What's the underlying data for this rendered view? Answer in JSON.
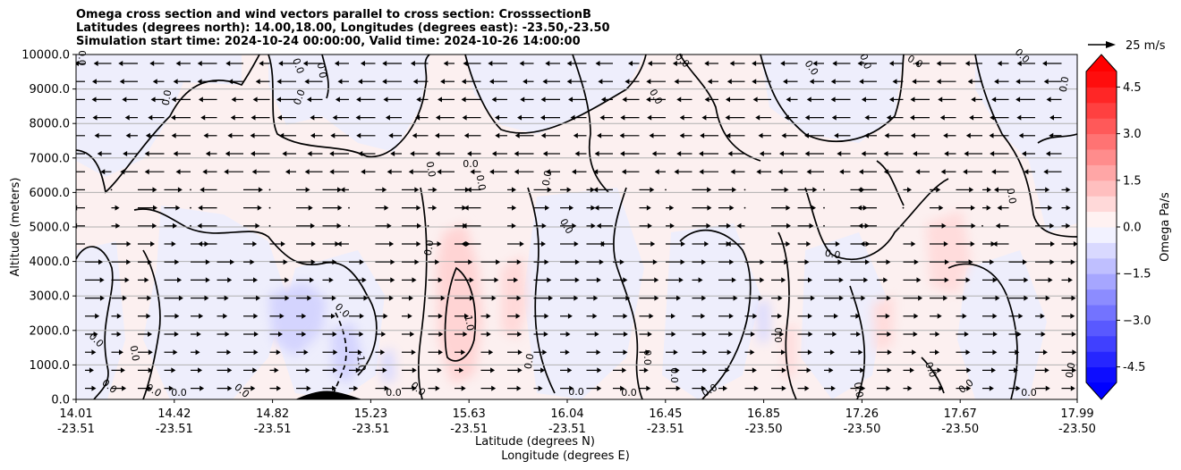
{
  "title": {
    "line1": "Omega cross section and wind vectors parallel to cross section: CrosssectionB",
    "line2": "Latitudes (degrees north): 14.00,18.00, Longitudes (degrees east): -23.50,-23.50",
    "line3": "Simulation start time: 2024-10-24 00:00:00, Valid time: 2024-10-26 14:00:00"
  },
  "chart_data": {
    "type": "heatmap",
    "ylabel": "Altitude (meters)",
    "xlabel_lat": "Latitude (degrees N)",
    "xlabel_lon": "Longitude (degrees E)",
    "ylim": [
      0,
      10000
    ],
    "y_ticks": [
      "0.0",
      "1000.0",
      "2000.0",
      "3000.0",
      "4000.0",
      "5000.0",
      "6000.0",
      "7000.0",
      "8000.0",
      "9000.0",
      "10000.0"
    ],
    "x_ticks": [
      {
        "lat": "14.01",
        "lon": "-23.51"
      },
      {
        "lat": "14.42",
        "lon": "-23.51"
      },
      {
        "lat": "14.82",
        "lon": "-23.51"
      },
      {
        "lat": "15.23",
        "lon": "-23.51"
      },
      {
        "lat": "15.63",
        "lon": "-23.51"
      },
      {
        "lat": "16.04",
        "lon": "-23.51"
      },
      {
        "lat": "16.45",
        "lon": "-23.51"
      },
      {
        "lat": "16.85",
        "lon": "-23.50"
      },
      {
        "lat": "17.26",
        "lon": "-23.50"
      },
      {
        "lat": "17.67",
        "lon": "-23.50"
      },
      {
        "lat": "17.99",
        "lon": "-23.50"
      }
    ],
    "grid": "horizontal",
    "colorbar": {
      "label": "Omega Pa/s",
      "range": [
        -5.0,
        5.0
      ],
      "ticks": [
        "-4.5",
        "−3.0",
        "−1.5",
        "0.0",
        "1.5",
        "3.0",
        "4.5"
      ],
      "colors": {
        "negative": "#0000ff",
        "positive": "#ff0000",
        "neutral": "#ffffff"
      }
    },
    "contour_label": "0.0",
    "contour_label_positive": "1.0",
    "contour_label_negative": "-1.0",
    "vector_reference": {
      "value": "25 m/s"
    },
    "omega_features": [
      {
        "lat": 15.55,
        "alt_min": 800,
        "alt_max": 4800,
        "omega": 1.0
      },
      {
        "lat": 15.75,
        "alt_min": 2500,
        "alt_max": 4200,
        "omega": 0.6
      },
      {
        "lat": 14.95,
        "alt_min": 500,
        "alt_max": 3400,
        "omega": -0.8
      },
      {
        "lat": 15.2,
        "alt_min": 300,
        "alt_max": 1200,
        "omega": -0.7
      },
      {
        "lat": 17.65,
        "alt_min": 2500,
        "alt_max": 5000,
        "omega": 0.5
      },
      {
        "lat": 17.25,
        "alt_min": 1200,
        "alt_max": 3000,
        "omega": 0.5
      }
    ]
  }
}
